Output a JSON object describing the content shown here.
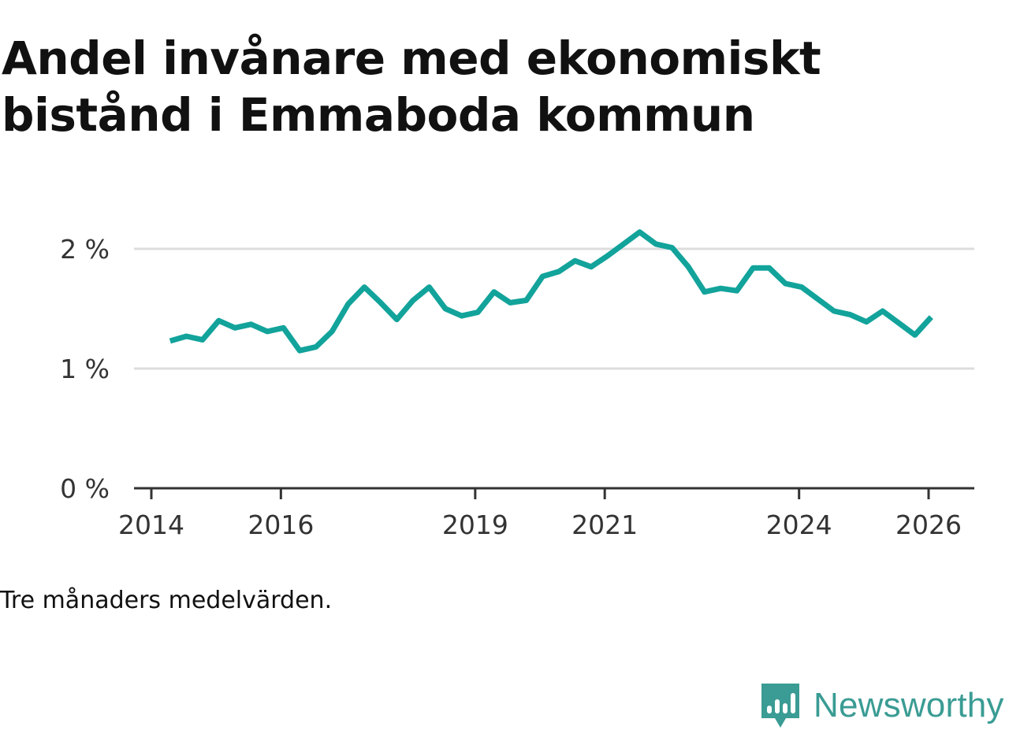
{
  "title_line1": "Andel invånare med ekonomiskt",
  "title_line2": "bistånd i Emmaboda kommun",
  "note": "Tre månaders medelvärden.",
  "brand": {
    "name": "Newsworthy",
    "icon": "newsworthy-logo-icon",
    "color": "#3a9c94"
  },
  "colors": {
    "line": "#12a39b",
    "grid": "#dddddd",
    "axis": "#333333"
  },
  "chart_data": {
    "type": "line",
    "title": "Andel invånare med ekonomiskt bistånd i Emmaboda kommun",
    "xlabel": "",
    "ylabel": "",
    "xlim": [
      2014,
      2026.4
    ],
    "ylim": [
      0,
      2.4
    ],
    "xticks": [
      2014,
      2016,
      2019,
      2021,
      2024,
      2026
    ],
    "xtick_labels": [
      "2014",
      "2016",
      "2019",
      "2021",
      "2024",
      "2026"
    ],
    "yticks": [
      0,
      1,
      2
    ],
    "ytick_labels": [
      "0 %",
      "1 %",
      "2 %"
    ],
    "grid": true,
    "series": [
      {
        "name": "Andel invånare med ekonomiskt bistånd",
        "x": [
          2014.29,
          2014.54,
          2014.79,
          2015.04,
          2015.29,
          2015.54,
          2015.79,
          2016.04,
          2016.29,
          2016.54,
          2016.79,
          2017.04,
          2017.29,
          2017.54,
          2017.79,
          2018.04,
          2018.29,
          2018.54,
          2018.79,
          2019.04,
          2019.29,
          2019.54,
          2019.79,
          2020.04,
          2020.29,
          2020.54,
          2020.79,
          2021.04,
          2021.29,
          2021.54,
          2021.79,
          2022.04,
          2022.29,
          2022.54,
          2022.79,
          2023.04,
          2023.29,
          2023.54,
          2023.79,
          2024.04,
          2024.29,
          2024.54,
          2024.79,
          2025.04,
          2025.29,
          2025.54,
          2025.79,
          2026.04
        ],
        "values": [
          1.23,
          1.27,
          1.24,
          1.4,
          1.34,
          1.37,
          1.31,
          1.34,
          1.15,
          1.18,
          1.31,
          1.54,
          1.68,
          1.55,
          1.41,
          1.57,
          1.68,
          1.5,
          1.44,
          1.47,
          1.64,
          1.55,
          1.57,
          1.77,
          1.81,
          1.9,
          1.85,
          1.94,
          2.04,
          2.14,
          2.04,
          2.01,
          1.85,
          1.64,
          1.67,
          1.65,
          1.84,
          1.84,
          1.71,
          1.68,
          1.58,
          1.48,
          1.45,
          1.39,
          1.48,
          1.38,
          1.28,
          1.43
        ]
      }
    ]
  }
}
